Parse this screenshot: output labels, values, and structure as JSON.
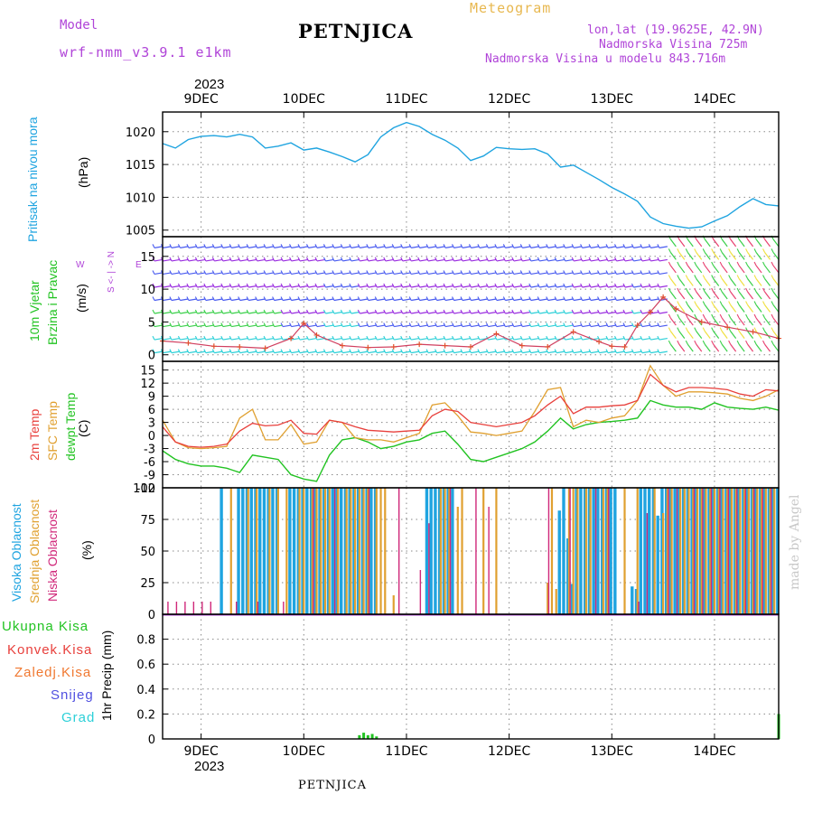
{
  "header": {
    "model_label": "Model",
    "model_name": "wrf-nmm_v3.9.1 e1km",
    "meteogram_label": "Meteogram",
    "title": "PETNJICA",
    "lonlat": "lon,lat (19.9625E, 42.9N)",
    "altitude": "Nadmorska Visina 725m",
    "model_altitude": "Nadmorska Visina u modelu 843.716m",
    "year_top": "2023",
    "year_bottom": "2023",
    "bottom_title": "PETNJICA",
    "watermark": "made by Angel"
  },
  "colors": {
    "pressure": "#1fa4e0",
    "temp2m": "#e8403c",
    "sfc": "#e0a030",
    "dewpt": "#22c322",
    "label_purple": "#b044d8",
    "high_cloud": "#1fa4e0",
    "mid_cloud": "#e0a030",
    "low_cloud": "#d0287a",
    "wind_cyan": "#2cd0d8",
    "wind_blue": "#4a5cf0",
    "wind_violet": "#9a2ee0",
    "wind_green": "#3ad04a",
    "wind_yellow": "#f0e040",
    "wind_red": "#e84070"
  },
  "axis_labels": {
    "pressure_title": "Pritisak na nivou mora",
    "pressure_unit": "(hPa)",
    "wind_title1": "10m Vjetar",
    "wind_title2": "Brzina i Pravac",
    "wind_unit": "(m/s)",
    "wind_compass_ns": "S <- | -> N",
    "wind_compass_w": "W",
    "wind_compass_e": "E",
    "temp_t1": "2m Temp",
    "temp_t2": "SFC Temp",
    "temp_t3": "dewpt Temp",
    "temp_unit": "(C)",
    "cloud_t1": "Visoka Oblacnost",
    "cloud_t2": "Srednja Oblacnost",
    "cloud_t3": "Niska Oblacnost",
    "cloud_unit": "(%)",
    "precip_unit": "1hr Precip (mm)"
  },
  "precip_legend": [
    "Ukupna Kisa",
    "Konvek.Kisa",
    "Zaledj.Kisa",
    "Snijeg",
    "Grad"
  ],
  "chart_data": [
    {
      "type": "line",
      "panel": "pressure",
      "x_labels": [
        "9DEC",
        "10DEC",
        "11DEC",
        "12DEC",
        "13DEC",
        "14DEC"
      ],
      "ylim": [
        1004,
        1023
      ],
      "yticks": [
        1005,
        1010,
        1015,
        1020
      ],
      "grid": true,
      "series": [
        {
          "name": "Pritisak na nivou mora",
          "x": [
            0,
            3,
            6,
            9,
            12,
            15,
            18,
            21,
            24,
            27,
            30,
            33,
            36,
            39,
            42,
            45,
            48,
            51,
            54,
            57,
            60,
            63,
            66,
            69,
            72,
            75,
            78,
            81,
            84,
            87,
            90,
            93,
            96,
            99,
            102,
            105,
            108,
            111,
            114,
            117,
            120,
            123,
            126,
            129,
            132,
            135,
            138,
            141,
            144
          ],
          "y": [
            1018.2,
            1017.5,
            1018.8,
            1019.3,
            1019.4,
            1019.2,
            1019.6,
            1019.2,
            1017.5,
            1017.8,
            1018.3,
            1017.2,
            1017.5,
            1016.9,
            1016.2,
            1015.4,
            1016.5,
            1019.2,
            1020.6,
            1021.4,
            1020.8,
            1019.6,
            1018.7,
            1017.5,
            1015.6,
            1016.3,
            1017.6,
            1017.4,
            1017.3,
            1017.4,
            1016.6,
            1014.6,
            1014.9,
            1013.8,
            1012.7,
            1011.5,
            1010.5,
            1009.4,
            1007.0,
            1006.0,
            1005.6,
            1005.3,
            1005.5,
            1006.4,
            1007.2,
            1008.6,
            1009.8,
            1008.9,
            1008.7
          ]
        }
      ]
    },
    {
      "type": "line",
      "panel": "wind",
      "ylim": [
        -1,
        18
      ],
      "yticks": [
        0,
        5,
        10,
        15
      ],
      "grid": true,
      "series": [
        {
          "name": "Brzina",
          "x": [
            0,
            6,
            12,
            18,
            24,
            30,
            33,
            36,
            42,
            48,
            54,
            60,
            66,
            72,
            78,
            84,
            90,
            96,
            102,
            105,
            108,
            111,
            114,
            117,
            120,
            126,
            132,
            138,
            144
          ],
          "y": [
            2.1,
            1.8,
            1.3,
            1.2,
            1.0,
            2.5,
            4.8,
            3.0,
            1.4,
            1.1,
            1.2,
            1.6,
            1.4,
            1.2,
            3.2,
            1.4,
            1.2,
            3.5,
            2.0,
            1.3,
            1.2,
            4.5,
            6.5,
            8.8,
            7.0,
            5.0,
            4.2,
            3.5,
            2.5
          ]
        }
      ]
    },
    {
      "type": "line",
      "panel": "temperature",
      "ylim": [
        -12,
        17
      ],
      "yticks": [
        -12,
        -9,
        -6,
        -3,
        0,
        3,
        6,
        9,
        12,
        15
      ],
      "grid": true,
      "series": [
        {
          "name": "2m Temp",
          "x": [
            0,
            3,
            6,
            9,
            12,
            15,
            18,
            21,
            24,
            27,
            30,
            33,
            36,
            39,
            42,
            45,
            48,
            51,
            54,
            57,
            60,
            63,
            66,
            69,
            72,
            75,
            78,
            81,
            84,
            87,
            90,
            93,
            96,
            99,
            102,
            105,
            108,
            111,
            114,
            117,
            120,
            123,
            126,
            129,
            132,
            135,
            138,
            141,
            144
          ],
          "y": [
            2.0,
            -1.5,
            -2.5,
            -2.7,
            -2.5,
            -2.0,
            1.0,
            2.8,
            2.2,
            2.4,
            3.5,
            0.5,
            0.3,
            3.5,
            3.0,
            2.0,
            1.2,
            1.0,
            0.8,
            1.0,
            1.2,
            4.5,
            6.0,
            5.5,
            3.0,
            2.5,
            2.0,
            2.5,
            3.0,
            4.5,
            7.0,
            9.0,
            5.0,
            6.5,
            6.5,
            6.8,
            7.0,
            8.0,
            14.0,
            11.5,
            10.0,
            11.0,
            11.0,
            10.8,
            10.5,
            9.5,
            9.0,
            10.5,
            10.2
          ]
        },
        {
          "name": "SFC Temp",
          "x": [
            0,
            3,
            6,
            9,
            12,
            15,
            18,
            21,
            24,
            27,
            30,
            33,
            36,
            39,
            42,
            45,
            48,
            51,
            54,
            57,
            60,
            63,
            66,
            69,
            72,
            75,
            78,
            81,
            84,
            87,
            90,
            93,
            96,
            99,
            102,
            105,
            108,
            111,
            114,
            117,
            120,
            123,
            126,
            129,
            132,
            135,
            138,
            141,
            144
          ],
          "y": [
            3.5,
            -1.5,
            -2.8,
            -3.0,
            -2.8,
            -2.5,
            4.0,
            6.0,
            -1.0,
            -1.0,
            2.5,
            -2.0,
            -1.5,
            3.5,
            3.0,
            -0.5,
            -1.0,
            -1.0,
            -1.5,
            -0.5,
            0.5,
            7.0,
            7.5,
            4.5,
            0.8,
            0.5,
            0.0,
            0.5,
            1.0,
            5.5,
            10.5,
            11.0,
            2.0,
            3.5,
            3.0,
            4.0,
            4.5,
            8.0,
            16.0,
            11.5,
            9.0,
            10.0,
            10.0,
            9.8,
            9.5,
            8.5,
            8.0,
            9.0,
            10.5
          ]
        },
        {
          "name": "dewpt Temp",
          "x": [
            0,
            3,
            6,
            9,
            12,
            15,
            18,
            21,
            24,
            27,
            30,
            33,
            36,
            39,
            42,
            45,
            48,
            51,
            54,
            57,
            60,
            63,
            66,
            69,
            72,
            75,
            78,
            81,
            84,
            87,
            90,
            93,
            96,
            99,
            102,
            105,
            108,
            111,
            114,
            117,
            120,
            123,
            126,
            129,
            132,
            135,
            138,
            141,
            144
          ],
          "y": [
            -3.5,
            -5.5,
            -6.5,
            -7.0,
            -7.0,
            -7.5,
            -8.5,
            -4.5,
            -5.0,
            -5.5,
            -9.0,
            -10.0,
            -10.5,
            -4.5,
            -1.0,
            -0.5,
            -1.5,
            -3.0,
            -2.5,
            -1.5,
            -1.0,
            0.5,
            1.0,
            -2.0,
            -5.5,
            -6.0,
            -5.0,
            -4.0,
            -3.0,
            -1.5,
            1.0,
            4.0,
            1.5,
            2.5,
            3.0,
            3.2,
            3.5,
            4.0,
            8.0,
            7.0,
            6.5,
            6.5,
            6.0,
            7.5,
            6.5,
            6.2,
            6.0,
            6.5,
            5.8
          ]
        }
      ]
    },
    {
      "type": "bar",
      "panel": "clouds",
      "ylim": [
        0,
        100
      ],
      "yticks": [
        0,
        25,
        50,
        75,
        100
      ],
      "grid": true,
      "series": [
        {
          "name": "Visoka Oblacnost",
          "hours": [
            14,
            18,
            19,
            20,
            21,
            22,
            23,
            24,
            25,
            26,
            27,
            30,
            31,
            32,
            33,
            34,
            35,
            36,
            37,
            38,
            39,
            40,
            41,
            42,
            43,
            44,
            45,
            46,
            47,
            48,
            49,
            50,
            62,
            63,
            64,
            65,
            66,
            67,
            68,
            93,
            94,
            95,
            96,
            97,
            98,
            99,
            100,
            101,
            102,
            103,
            104,
            105,
            106,
            110,
            111,
            112,
            113,
            114,
            115,
            116,
            117,
            118,
            119,
            120,
            121,
            122,
            123,
            124,
            125,
            126,
            127,
            128,
            129,
            130,
            131,
            132,
            133,
            134,
            135,
            136,
            137,
            138,
            139,
            140,
            141,
            142,
            143,
            144
          ],
          "values": [
            100,
            100,
            100,
            100,
            100,
            100,
            100,
            100,
            100,
            100,
            100,
            100,
            100,
            100,
            100,
            100,
            100,
            100,
            100,
            100,
            100,
            100,
            100,
            100,
            100,
            100,
            100,
            100,
            100,
            100,
            100,
            100,
            100,
            100,
            100,
            100,
            100,
            100,
            100,
            82,
            100,
            60,
            24,
            100,
            100,
            100,
            100,
            100,
            100,
            100,
            100,
            100,
            100,
            22,
            20,
            100,
            100,
            100,
            100,
            78,
            100,
            100,
            100,
            100,
            100,
            100,
            100,
            100,
            100,
            100,
            100,
            100,
            100,
            100,
            100,
            100,
            100,
            100,
            100,
            100,
            100,
            100,
            100,
            100,
            100,
            100,
            100,
            100
          ]
        },
        {
          "name": "Srednja Oblacnost",
          "hours": [
            16,
            20,
            22,
            25,
            27,
            29,
            32,
            33,
            35,
            36,
            37,
            38,
            39,
            41,
            43,
            44,
            45,
            46,
            47,
            48,
            50,
            51,
            52,
            54,
            65,
            66,
            67,
            69,
            70,
            75,
            78,
            90,
            91,
            92,
            95,
            96,
            97,
            99,
            100,
            103,
            104,
            108,
            111,
            115,
            117,
            118,
            119,
            121,
            122,
            123,
            124,
            125,
            126,
            127,
            128,
            129,
            130,
            131,
            132,
            133,
            134,
            135,
            136,
            137,
            138,
            139,
            140,
            141,
            142,
            143
          ],
          "values": [
            100,
            100,
            100,
            100,
            100,
            100,
            100,
            100,
            100,
            100,
            100,
            100,
            100,
            100,
            100,
            100,
            100,
            100,
            100,
            100,
            100,
            100,
            100,
            15,
            100,
            100,
            100,
            85,
            100,
            100,
            100,
            25,
            100,
            20,
            100,
            100,
            100,
            100,
            100,
            100,
            100,
            100,
            100,
            100,
            80,
            100,
            100,
            100,
            100,
            100,
            100,
            100,
            100,
            100,
            100,
            100,
            100,
            100,
            100,
            100,
            100,
            100,
            100,
            100,
            100,
            100,
            100,
            100,
            100,
            100
          ]
        },
        {
          "name": "Niska Oblacnost",
          "hours": [
            1,
            3,
            5,
            7,
            9,
            11,
            17,
            22,
            28,
            35,
            40,
            48,
            55,
            60,
            62,
            67,
            73,
            76,
            90,
            95,
            101,
            104,
            111,
            113,
            118,
            120,
            124,
            126,
            128,
            130,
            132,
            134,
            136,
            138,
            140,
            142
          ],
          "values": [
            10,
            10,
            10,
            10,
            10,
            10,
            10,
            10,
            10,
            100,
            100,
            100,
            100,
            35,
            72,
            100,
            100,
            85,
            100,
            100,
            100,
            100,
            10,
            80,
            100,
            100,
            100,
            100,
            100,
            100,
            100,
            100,
            100,
            100,
            100,
            100
          ]
        }
      ]
    },
    {
      "type": "bar",
      "panel": "precipitation",
      "ylim": [
        0,
        1.0
      ],
      "yticks": [
        0,
        0.2,
        0.4,
        0.6,
        0.8
      ],
      "grid": true,
      "series": [
        {
          "name": "Ukupna Kisa",
          "hours": [
            46,
            47,
            48,
            49,
            50,
            144
          ],
          "values": [
            0.03,
            0.05,
            0.03,
            0.04,
            0.02,
            0.2
          ]
        },
        {
          "name": "Konvek.Kisa",
          "hours": [],
          "values": []
        },
        {
          "name": "Zaledj.Kisa",
          "hours": [],
          "values": []
        },
        {
          "name": "Snijeg",
          "hours": [],
          "values": []
        },
        {
          "name": "Grad",
          "hours": [],
          "values": []
        }
      ]
    }
  ]
}
